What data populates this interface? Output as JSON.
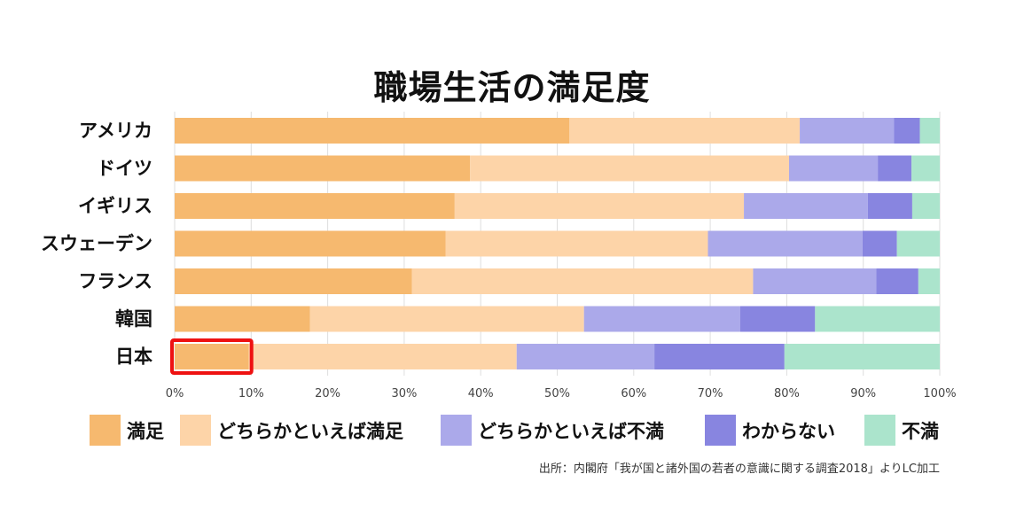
{
  "chart_data": {
    "type": "bar",
    "orientation": "horizontal",
    "stacked": true,
    "percent": true,
    "title": "職場生活の満足度",
    "categories": [
      "アメリカ",
      "ドイツ",
      "イギリス",
      "スウェーデン",
      "フランス",
      "韓国",
      "日本"
    ],
    "series": [
      {
        "name": "満足",
        "color": "#F6B96F",
        "values": [
          51.6,
          38.6,
          36.6,
          35.4,
          31.0,
          17.7,
          9.7
        ]
      },
      {
        "name": "どちらかといえば満足",
        "color": "#FDD4A8",
        "values": [
          30.1,
          41.7,
          37.8,
          34.3,
          44.6,
          35.8,
          35.0
        ]
      },
      {
        "name": "どちらかといえば不満",
        "color": "#ABA9EA",
        "values": [
          12.3,
          11.6,
          16.2,
          20.2,
          16.1,
          20.4,
          18.0
        ]
      },
      {
        "name": "わからない",
        "color": "#8885E0",
        "values": [
          3.4,
          4.4,
          5.8,
          4.5,
          5.5,
          9.8,
          17.0
        ]
      },
      {
        "name": "不満",
        "color": "#ABE4CC",
        "values": [
          2.6,
          3.7,
          3.6,
          5.6,
          2.8,
          16.3,
          20.3
        ]
      }
    ],
    "xlim": [
      0,
      100
    ],
    "xticks": [
      "0%",
      "10%",
      "20%",
      "30%",
      "40%",
      "50%",
      "60%",
      "70%",
      "80%",
      "90%",
      "100%"
    ],
    "grid": true,
    "legend_position": "bottom",
    "highlight": {
      "category": "日本",
      "series": "満足",
      "color": "#EE1111"
    },
    "source": "出所：内閣府「我が国と諸外国の若者の意識に関する調査2018」よりLC加工"
  }
}
